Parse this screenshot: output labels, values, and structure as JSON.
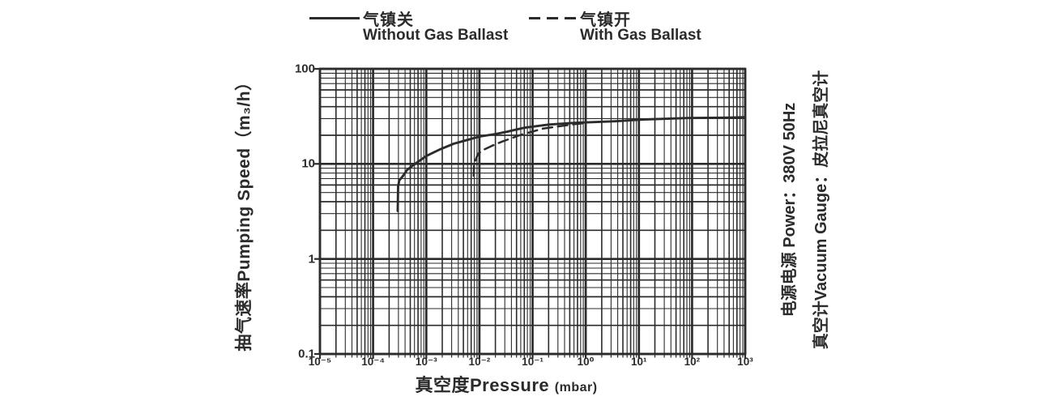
{
  "colors": {
    "ink": "#2b2b2b",
    "background": "#ffffff"
  },
  "legend": {
    "without": {
      "zh": "气镇关",
      "en": "Without Gas Ballast",
      "line_style": "solid"
    },
    "with": {
      "zh": "气镇开",
      "en": "With Gas Ballast",
      "line_style": "dashed"
    }
  },
  "axes": {
    "y_label": "抽气速率Pumping Speed（m₃/h）",
    "x_label_main": "真空度Pressure",
    "x_label_unit": "(mbar)",
    "y_ticks": [
      "100",
      "10",
      "1",
      "0.1"
    ],
    "x_ticks": [
      "10⁻⁵",
      "10⁻⁴",
      "10⁻³",
      "10⁻²",
      "10⁻¹",
      "10⁰",
      "10¹",
      "10²",
      "10³"
    ]
  },
  "side_notes": {
    "power": "电源电源 Power：380V 50Hz",
    "gauge": "真空计Vacuum Gauge：皮拉尼真空计"
  },
  "chart_data": {
    "type": "line",
    "x_scale": "log",
    "y_scale": "log",
    "xlim": [
      1e-05,
      1000
    ],
    "ylim": [
      0.1,
      100
    ],
    "xlabel": "真空度Pressure (mbar)",
    "ylabel": "抽气速率Pumping Speed (m3/h)",
    "grid": true,
    "legend_position": "top",
    "series": [
      {
        "name": "气镇关 Without Gas Ballast",
        "style": "solid",
        "points": [
          [
            0.00029,
            3.2
          ],
          [
            0.000295,
            5.8
          ],
          [
            0.00031,
            6.7
          ],
          [
            0.00036,
            7.4
          ],
          [
            0.00044,
            8.7
          ],
          [
            0.00063,
            10.1
          ],
          [
            0.001,
            12.1
          ],
          [
            0.0018,
            14.2
          ],
          [
            0.0033,
            16.3
          ],
          [
            0.006,
            17.9
          ],
          [
            0.01,
            19.4
          ],
          [
            0.02,
            20.6
          ],
          [
            0.034,
            21.9
          ],
          [
            0.07,
            24.0
          ],
          [
            0.2,
            25.9
          ],
          [
            0.6,
            27.0
          ],
          [
            3.6,
            28.1
          ],
          [
            12,
            29.3
          ],
          [
            84,
            30.4
          ],
          [
            390,
            30.6
          ],
          [
            1000,
            31.0
          ]
        ]
      },
      {
        "name": "气镇开 With Gas Ballast",
        "style": "dashed",
        "points": [
          [
            0.0078,
            7.5
          ],
          [
            0.0079,
            9.5
          ],
          [
            0.0085,
            11.0
          ],
          [
            0.0094,
            12.8
          ],
          [
            0.0124,
            14.2
          ],
          [
            0.0176,
            15.6
          ],
          [
            0.027,
            17.2
          ],
          [
            0.041,
            18.7
          ],
          [
            0.06,
            20.2
          ],
          [
            0.1,
            21.9
          ],
          [
            0.156,
            23.5
          ],
          [
            0.25,
            24.4
          ],
          [
            0.4,
            25.3
          ],
          [
            0.63,
            26.2
          ],
          [
            1.0,
            26.9
          ]
        ]
      }
    ]
  }
}
